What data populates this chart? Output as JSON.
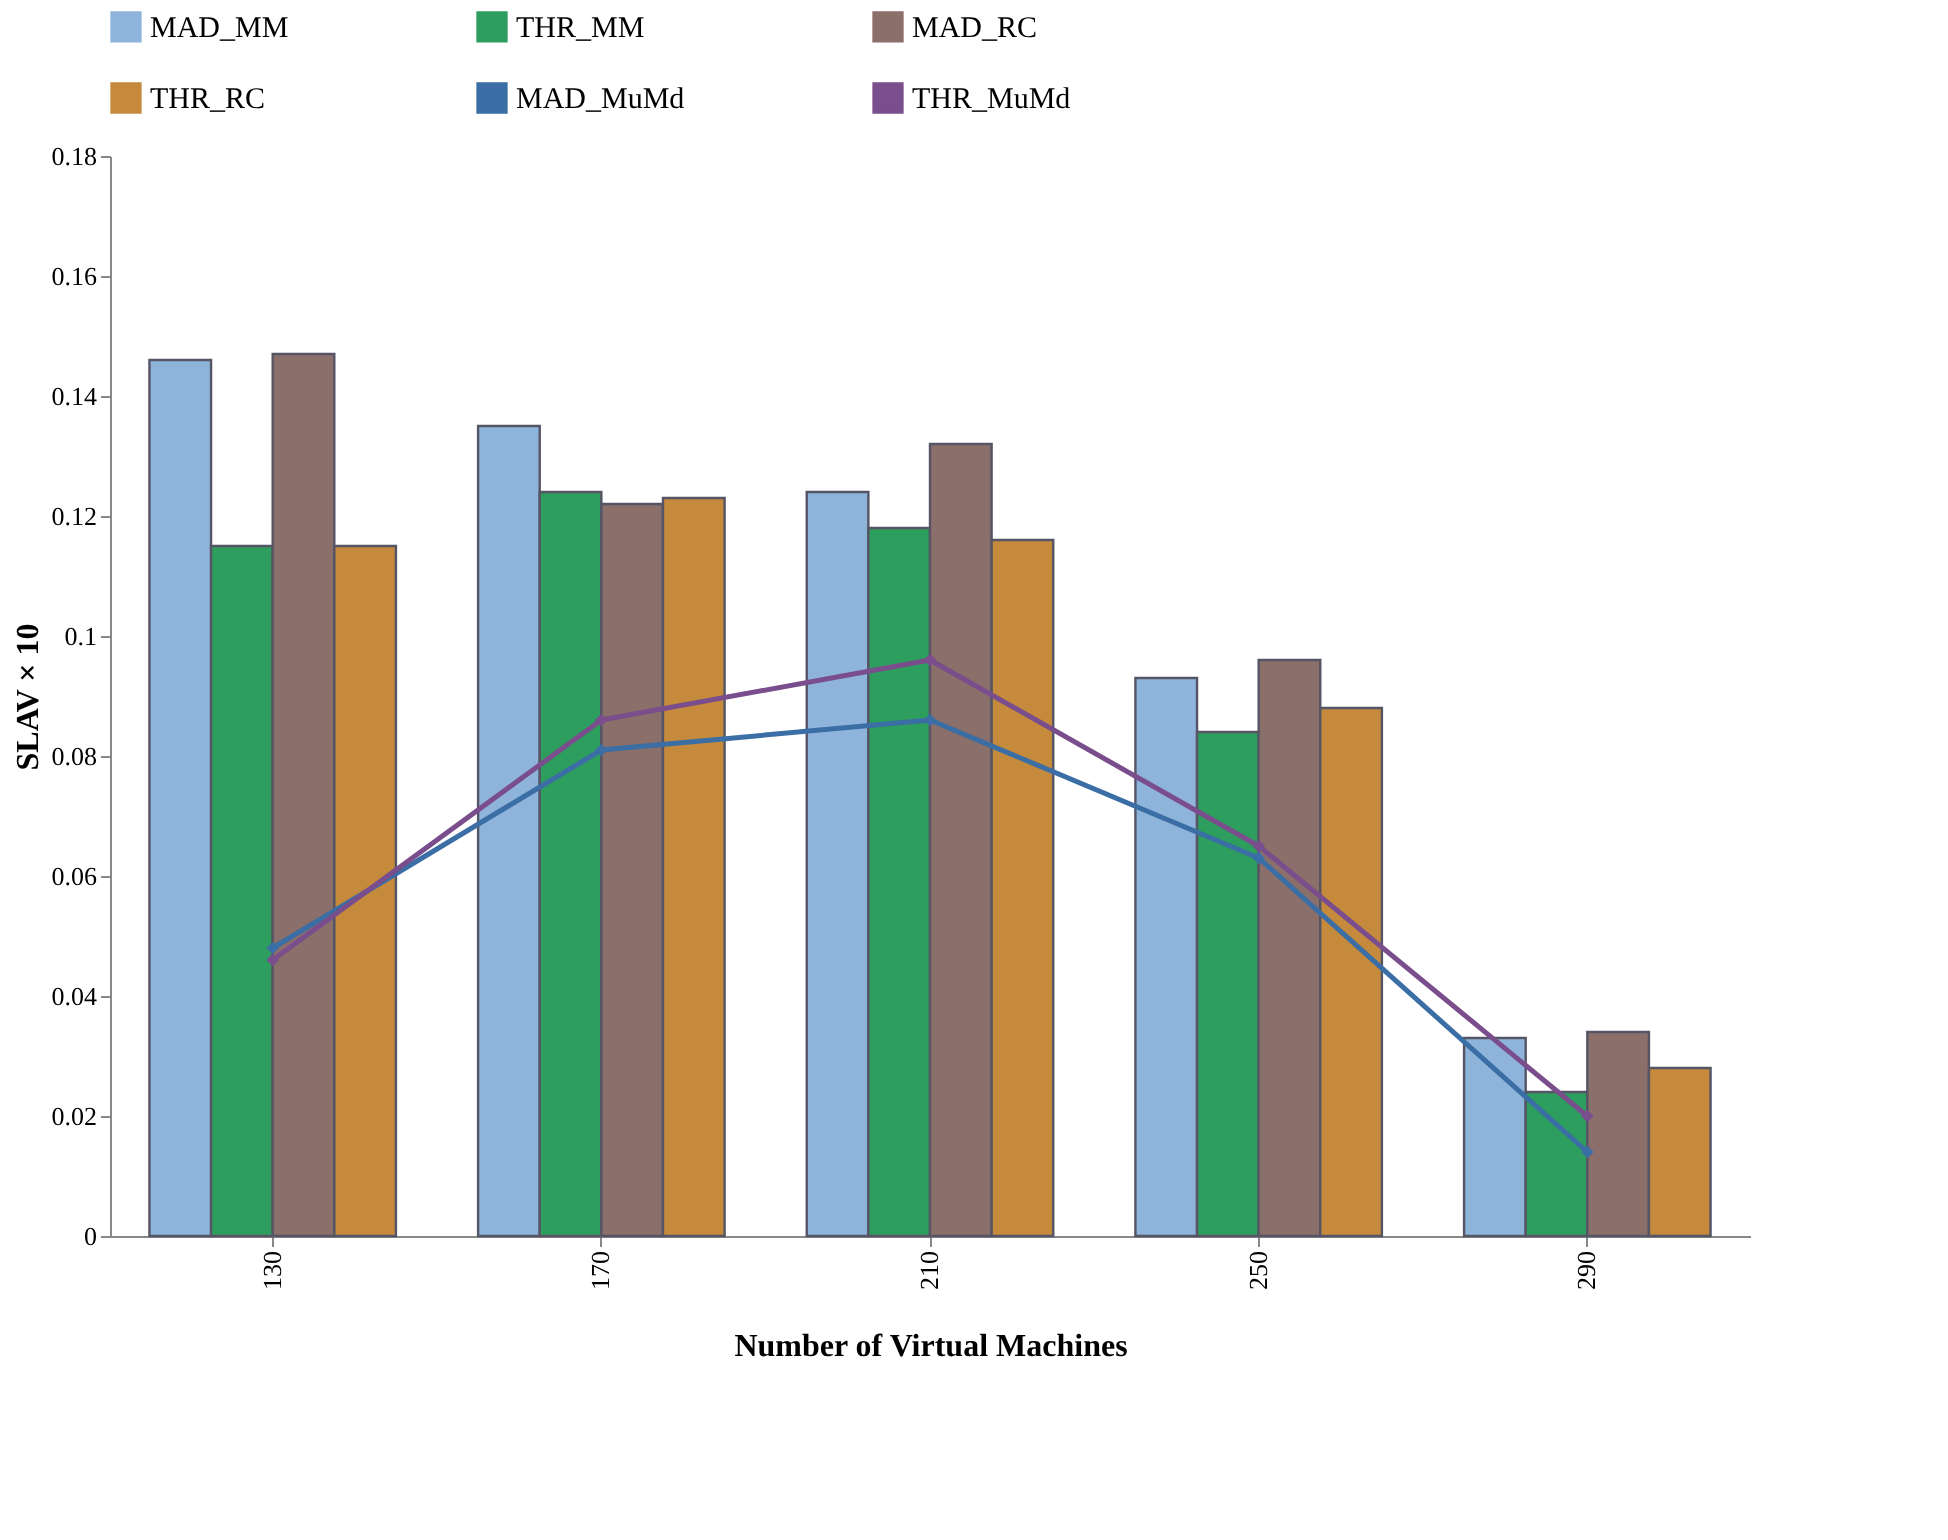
{
  "chart_data": {
    "type": "bar",
    "xlabel": "Number of Virtual Machines",
    "ylabel": "SLAV × 10",
    "categories": [
      "130",
      "170",
      "210",
      "250",
      "290"
    ],
    "series": [
      {
        "name": "MAD_MM",
        "color": "#8fb4dc",
        "values": [
          0.146,
          0.135,
          0.124,
          0.093,
          0.033
        ]
      },
      {
        "name": "THR_MM",
        "color": "#2e9e5e",
        "values": [
          0.115,
          0.124,
          0.118,
          0.084,
          0.024
        ]
      },
      {
        "name": "MAD_RC",
        "color": "#8b6f6a",
        "values": [
          0.147,
          0.122,
          0.132,
          0.096,
          0.034
        ]
      },
      {
        "name": "THR_RC",
        "color": "#c58a3c",
        "values": [
          0.115,
          0.123,
          0.116,
          0.088,
          0.028
        ]
      },
      {
        "name": "MAD_MuMd",
        "type": "line",
        "color": "#3a6ea5",
        "values": [
          0.048,
          0.081,
          0.086,
          0.063,
          0.014
        ]
      },
      {
        "name": "THR_MuMd",
        "type": "line",
        "color": "#7a4d8c",
        "values": [
          0.046,
          0.086,
          0.096,
          0.065,
          0.02
        ]
      }
    ],
    "ylim": [
      0,
      0.18
    ],
    "yticks": [
      0,
      0.02,
      0.04,
      0.06,
      0.08,
      0.1,
      0.12,
      0.14,
      0.16,
      0.18
    ],
    "grid": false,
    "legend": "top",
    "marker": "diamond"
  }
}
